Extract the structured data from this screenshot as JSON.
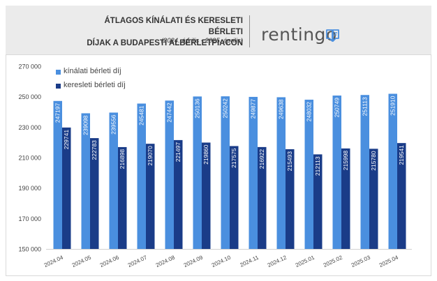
{
  "header": {
    "title_line1": "ÁTLAGOS KÍNÁLATI ÉS KERESLETI BÉRLETI",
    "title_line2": "DÍJAK A BUDAPESTI ALBÉRLETPIACON",
    "subtitle": "(2024. április - 2025. április)",
    "brand": "rentingo",
    "brand_icon": "speech-bubble-logo-icon"
  },
  "colors": {
    "offered": "#4a8fdf",
    "demand": "#1a3c88",
    "label_text": "#ffffff",
    "axis_text": "#444444"
  },
  "chart_data": {
    "type": "bar",
    "categories": [
      "2024.04",
      "2024.05",
      "2024.06",
      "2024.07",
      "2024.08",
      "2024.09",
      "2024.10",
      "2024.11",
      "2024.12",
      "2025.01",
      "2025.02",
      "2025.03",
      "2025.04"
    ],
    "series": [
      {
        "name": "kínálati bérleti díj",
        "values": [
          247197,
          239098,
          239556,
          245481,
          247442,
          250136,
          250242,
          249877,
          249638,
          248032,
          250749,
          251113,
          251910
        ]
      },
      {
        "name": "keresleti bérleti díj",
        "values": [
          229741,
          222783,
          216898,
          219070,
          221497,
          219860,
          217575,
          216922,
          215493,
          212113,
          215998,
          215780,
          219541
        ]
      }
    ],
    "ylim": [
      150000,
      270000
    ],
    "yticks": [
      150000,
      170000,
      190000,
      210000,
      230000,
      250000,
      270000
    ],
    "ytick_labels": [
      "150 000",
      "170 000",
      "190 000",
      "210 000",
      "230 000",
      "250 000",
      "270 000"
    ],
    "legend_position": "top-left",
    "grid": false,
    "data_labels": true,
    "data_label_orientation": "vertical"
  }
}
